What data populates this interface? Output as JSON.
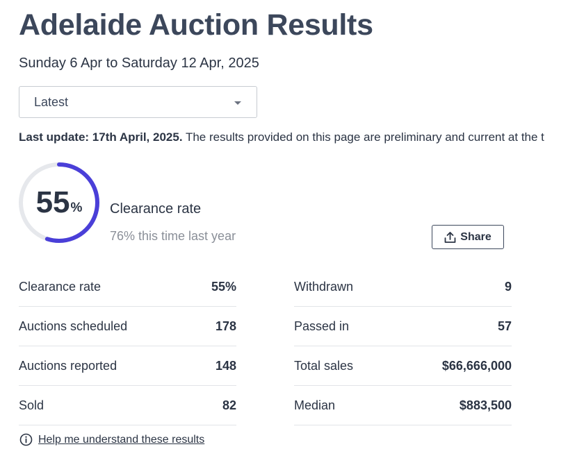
{
  "header": {
    "title": "Adelaide Auction Results",
    "date_range": "Sunday 6 Apr to Saturday 12 Apr, 2025"
  },
  "period_select": {
    "value": "Latest"
  },
  "update": {
    "bold": "Last update: 17th April, 2025.",
    "text": " The results provided on this page are preliminary and current at the t"
  },
  "clearance": {
    "rate_value": "55",
    "rate_unit": "%",
    "rate_fraction": 0.55,
    "label": "Clearance rate",
    "last_year": "76% this time last year",
    "accent_color": "#4a3fd8",
    "track_color": "#e6e8ec"
  },
  "share": {
    "label": "Share"
  },
  "stats_left": [
    {
      "label": "Clearance rate",
      "value": "55%"
    },
    {
      "label": "Auctions scheduled",
      "value": "178"
    },
    {
      "label": "Auctions reported",
      "value": "148"
    },
    {
      "label": "Sold",
      "value": "82"
    }
  ],
  "stats_right": [
    {
      "label": "Withdrawn",
      "value": "9"
    },
    {
      "label": "Passed in",
      "value": "57"
    },
    {
      "label": "Total sales",
      "value": "$66,666,000"
    },
    {
      "label": "Median",
      "value": "$883,500"
    }
  ],
  "help": {
    "icon": "info-icon",
    "link": "Help me understand these results"
  }
}
